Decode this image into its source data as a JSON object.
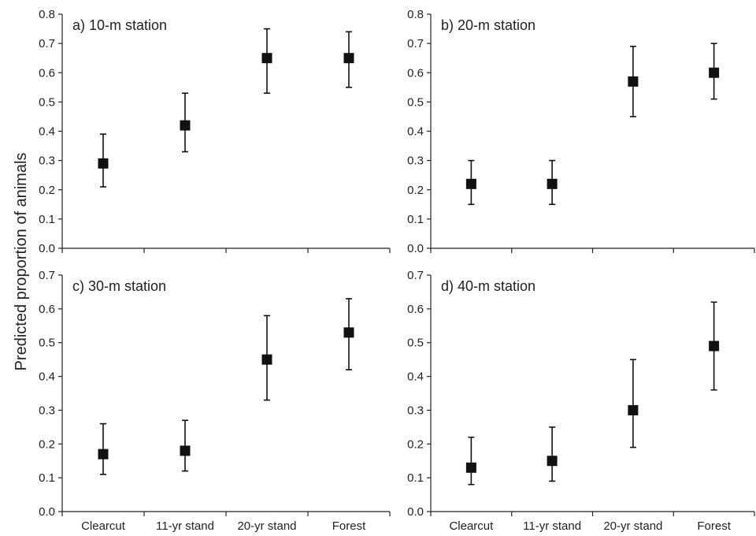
{
  "figure": {
    "ylabel": "Predicted proportion of animals",
    "categories": [
      "Clearcut",
      "11-yr stand",
      "20-yr stand",
      "Forest"
    ]
  },
  "chart_data": [
    {
      "type": "scatter",
      "label": "a) 10-m station",
      "ylim": [
        0,
        0.8
      ],
      "yticks": [
        "0.0",
        "0.1",
        "0.2",
        "0.3",
        "0.4",
        "0.5",
        "0.6",
        "0.7",
        "0.8"
      ],
      "categories": [
        "Clearcut",
        "11-yr stand",
        "20-yr stand",
        "Forest"
      ],
      "values": [
        0.29,
        0.42,
        0.65,
        0.65
      ],
      "lower": [
        0.21,
        0.33,
        0.53,
        0.55
      ],
      "upper": [
        0.39,
        0.53,
        0.75,
        0.74
      ],
      "show_xlabels": false
    },
    {
      "type": "scatter",
      "label": "b) 20-m station",
      "ylim": [
        0,
        0.8
      ],
      "yticks": [
        "0.0",
        "0.1",
        "0.2",
        "0.3",
        "0.4",
        "0.5",
        "0.6",
        "0.7",
        "0.8"
      ],
      "categories": [
        "Clearcut",
        "11-yr stand",
        "20-yr stand",
        "Forest"
      ],
      "values": [
        0.22,
        0.22,
        0.57,
        0.6
      ],
      "lower": [
        0.15,
        0.15,
        0.45,
        0.51
      ],
      "upper": [
        0.3,
        0.3,
        0.69,
        0.7
      ],
      "show_xlabels": false
    },
    {
      "type": "scatter",
      "label": "c) 30-m station",
      "ylim": [
        0,
        0.7
      ],
      "yticks": [
        "0.0",
        "0.1",
        "0.2",
        "0.3",
        "0.4",
        "0.5",
        "0.6",
        "0.7"
      ],
      "categories": [
        "Clearcut",
        "11-yr stand",
        "20-yr stand",
        "Forest"
      ],
      "values": [
        0.17,
        0.18,
        0.45,
        0.53
      ],
      "lower": [
        0.11,
        0.12,
        0.33,
        0.42
      ],
      "upper": [
        0.26,
        0.27,
        0.58,
        0.63
      ],
      "show_xlabels": true
    },
    {
      "type": "scatter",
      "label": "d) 40-m station",
      "ylim": [
        0,
        0.7
      ],
      "yticks": [
        "0.0",
        "0.1",
        "0.2",
        "0.3",
        "0.4",
        "0.5",
        "0.6",
        "0.7"
      ],
      "categories": [
        "Clearcut",
        "11-yr stand",
        "20-yr stand",
        "Forest"
      ],
      "values": [
        0.13,
        0.15,
        0.3,
        0.49
      ],
      "lower": [
        0.08,
        0.09,
        0.19,
        0.36
      ],
      "upper": [
        0.22,
        0.25,
        0.45,
        0.62
      ],
      "show_xlabels": true
    }
  ]
}
